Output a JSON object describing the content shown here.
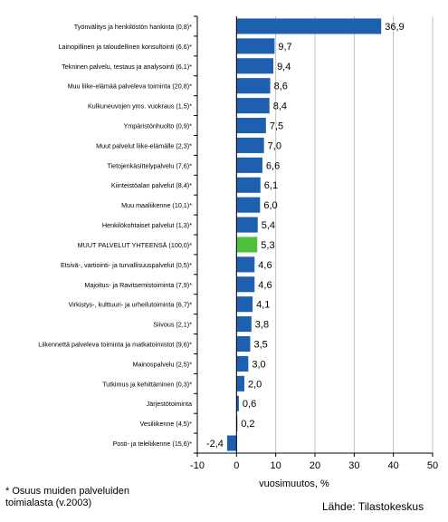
{
  "chart_data": {
    "type": "bar",
    "orientation": "horizontal",
    "categories": [
      "Työnvälitys ja henkilöstön hankinta (0,8)*",
      "Lainopillinen ja taloudellinen konsultointi (6,6)*",
      "Tekninen palvelu, testaus ja analysointi (6,1)*",
      "Muu liike-elämää palveleva toiminta (20,8)*",
      "Kulkuneuvojen yms. vuokraus (1,5)*",
      "Ympäristönhuolto (0,9)*",
      "Muut palvelut liike-elämälle (2,3)*",
      "Tietojenkäsittelypalvelu (7,6)*",
      "Kiinteistöalan palvelut (8,4)*",
      "Muu maaliikenne (10,1)*",
      "Henkilökohtaiset palvelut (1,3)*",
      "MUUT PALVELUT YHTEENSÄ (100,0)*",
      "Etsivä-, vartiointi- ja turvallisuuspalvelut (0,5)*",
      "Majoitus- ja Ravitsemistoiminta (7,9)*",
      "Virkistys-, kulttuuri- ja urheilutoiminta (6,7)*",
      "Siivous (2,1)*",
      "Liikennettä palveleva toiminta ja matkatoimistot (9,6)*",
      "Mainospalvelu (2,5)*",
      "Tutkimus ja kehittäminen (0,3)*",
      "Järjestötoiminta",
      "Vesiliikenne (4,5)*",
      "Posti- ja teleliikenne (15,6)*"
    ],
    "values": [
      36.9,
      9.7,
      9.4,
      8.6,
      8.4,
      7.5,
      7.0,
      6.6,
      6.1,
      6.0,
      5.4,
      5.3,
      4.6,
      4.6,
      4.1,
      3.8,
      3.5,
      3.0,
      2.0,
      0.6,
      0.2,
      -2.4
    ],
    "value_labels": [
      "36,9",
      "9,7",
      "9,4",
      "8,6",
      "8,4",
      "7,5",
      "7,0",
      "6,6",
      "6,1",
      "6,0",
      "5,4",
      "5,3",
      "4,6",
      "4,6",
      "4,1",
      "3,8",
      "3,5",
      "3,0",
      "2,0",
      "0,6",
      "0,2",
      "-2,4"
    ],
    "highlight_index": 11,
    "xlim": [
      -10,
      50
    ],
    "xticks": [
      -10,
      0,
      10,
      20,
      30,
      40,
      50
    ],
    "xlabel": "vuosimuutos, %",
    "grid": "vertical",
    "colors": {
      "bar": "#1f5fb0",
      "highlight": "#4fbf3f",
      "grid": "#c0c0c0"
    }
  },
  "footnote": [
    "* Osuus muiden palveluiden",
    "toimialasta (v.2003)"
  ],
  "source": "Lähde: Tilastokeskus"
}
